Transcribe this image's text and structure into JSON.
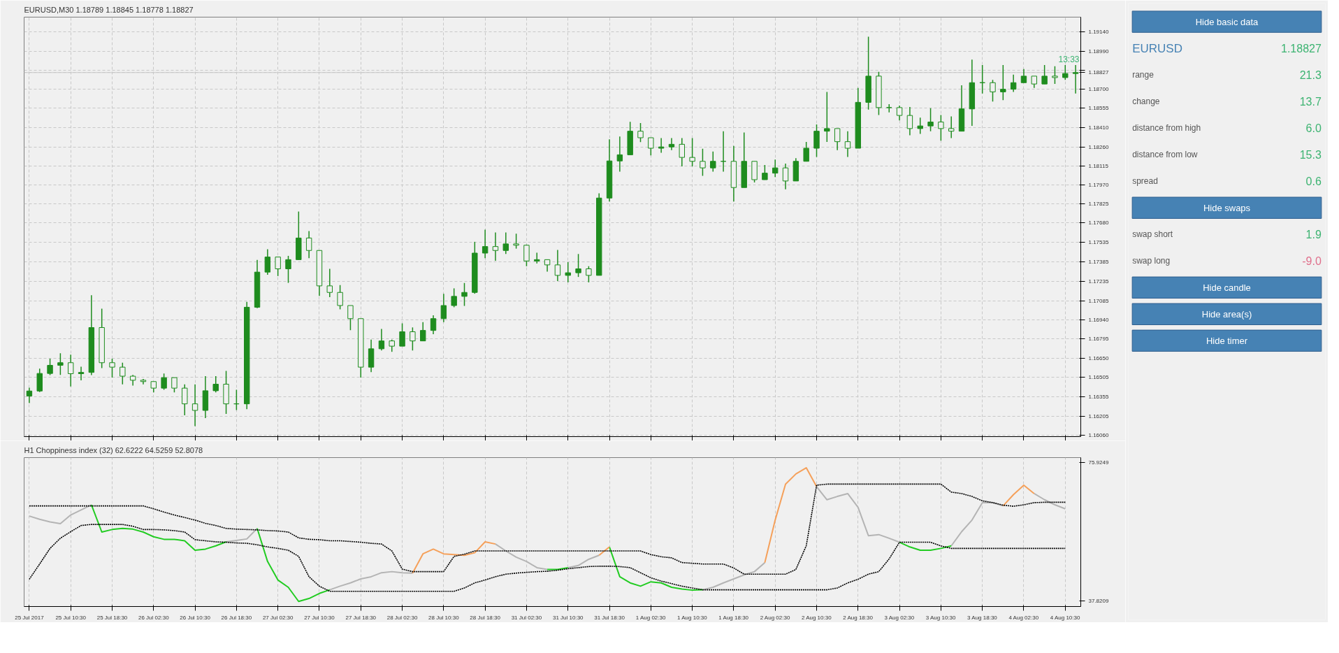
{
  "chart_data": [
    {
      "type": "candlestick",
      "title": "EURUSD,M30  1.18789 1.18845 1.18778 1.18827",
      "color": "#1e8c1e",
      "categories": [
        null,
        null,
        null,
        null,
        null,
        null,
        null,
        null,
        null,
        null,
        null,
        null,
        null,
        null,
        null,
        null,
        null,
        null,
        null,
        null,
        null,
        null,
        null,
        null,
        null,
        null,
        null,
        null,
        null,
        null,
        null,
        null,
        null,
        null,
        null,
        null,
        null,
        null,
        null,
        null,
        null,
        null,
        null,
        null,
        null,
        null,
        null,
        null,
        null,
        null,
        null,
        null,
        null,
        null,
        null,
        null,
        null,
        null,
        null,
        null,
        null,
        null,
        null,
        null,
        null,
        null,
        null,
        null,
        null,
        null,
        null,
        null,
        null,
        null,
        null,
        null,
        null,
        null,
        null,
        null,
        null,
        null,
        null,
        null,
        null,
        null,
        null,
        null,
        null,
        null,
        null,
        null,
        null,
        null,
        null,
        null,
        null,
        null,
        null,
        null,
        null,
        null
      ],
      "ohlc": [
        [
          1.1636,
          1.16423,
          1.16306,
          1.16398
        ],
        [
          1.16398,
          1.16569,
          1.1639,
          1.16532
        ],
        [
          1.16532,
          1.16645,
          1.1652,
          1.16594
        ],
        [
          1.16594,
          1.16686,
          1.16521,
          1.16614
        ],
        [
          1.16614,
          1.16676,
          1.16433,
          1.1653
        ],
        [
          1.1653,
          1.16583,
          1.1648,
          1.1654
        ],
        [
          1.1654,
          1.17129,
          1.1652,
          1.16882
        ],
        [
          1.16882,
          1.17026,
          1.16573,
          1.16614
        ],
        [
          1.16614,
          1.16645,
          1.16501,
          1.1658
        ],
        [
          1.1658,
          1.16614,
          1.16449,
          1.16511
        ],
        [
          1.16511,
          1.16521,
          1.16439,
          1.1648
        ],
        [
          1.1648,
          1.1649,
          1.16449,
          1.1647
        ],
        [
          1.1647,
          1.1647,
          1.16388,
          1.1642
        ],
        [
          1.1642,
          1.16532,
          1.16408,
          1.165
        ],
        [
          1.165,
          1.16501,
          1.16388,
          1.1642
        ],
        [
          1.1642,
          1.16449,
          1.16213,
          1.163
        ],
        [
          1.163,
          1.16449,
          1.1613,
          1.1625
        ],
        [
          1.1625,
          1.16511,
          1.16192,
          1.164
        ],
        [
          1.164,
          1.16511,
          1.16388,
          1.1645
        ],
        [
          1.1645,
          1.16552,
          1.16223,
          1.163
        ],
        [
          1.163,
          1.16408,
          1.16253,
          1.163
        ],
        [
          1.163,
          1.17078,
          1.1626,
          1.17037
        ],
        [
          1.17037,
          1.17398,
          1.1703,
          1.17305
        ],
        [
          1.17305,
          1.1748,
          1.17285,
          1.1742
        ],
        [
          1.1742,
          1.1742,
          1.17275,
          1.1733
        ],
        [
          1.1733,
          1.17429,
          1.17223,
          1.174
        ],
        [
          1.174,
          1.17767,
          1.174,
          1.17565
        ],
        [
          1.17565,
          1.17618,
          1.17412,
          1.1747
        ],
        [
          1.1747,
          1.1747,
          1.17124,
          1.172
        ],
        [
          1.172,
          1.1733,
          1.17114,
          1.1715
        ],
        [
          1.1715,
          1.17206,
          1.17021,
          1.1705
        ],
        [
          1.1705,
          1.1705,
          1.16862,
          1.1695
        ],
        [
          1.1695,
          1.1695,
          1.16501,
          1.1658
        ],
        [
          1.1658,
          1.1679,
          1.16542,
          1.1672
        ],
        [
          1.1672,
          1.16872,
          1.16707,
          1.1678
        ],
        [
          1.1678,
          1.1679,
          1.16697,
          1.1674
        ],
        [
          1.1674,
          1.16914,
          1.1674,
          1.1685
        ],
        [
          1.1685,
          1.16883,
          1.16707,
          1.1678
        ],
        [
          1.1678,
          1.16924,
          1.1678,
          1.1686
        ],
        [
          1.1686,
          1.16976,
          1.16832,
          1.1695
        ],
        [
          1.1695,
          1.1714,
          1.16924,
          1.1705
        ],
        [
          1.1705,
          1.17181,
          1.17037,
          1.1712
        ],
        [
          1.1712,
          1.17222,
          1.17047,
          1.1715
        ],
        [
          1.1715,
          1.17536,
          1.1714,
          1.1745
        ],
        [
          1.1745,
          1.17629,
          1.17412,
          1.175
        ],
        [
          1.175,
          1.17608,
          1.17392,
          1.1747
        ],
        [
          1.1747,
          1.17608,
          1.17443,
          1.1752
        ],
        [
          1.1752,
          1.17598,
          1.17484,
          1.1751
        ],
        [
          1.1751,
          1.17515,
          1.1735,
          1.1739
        ],
        [
          1.1739,
          1.17453,
          1.17371,
          1.174
        ],
        [
          1.174,
          1.174,
          1.17309,
          1.1736
        ],
        [
          1.1736,
          1.17474,
          1.17237,
          1.1728
        ],
        [
          1.1728,
          1.17381,
          1.17227,
          1.173
        ],
        [
          1.173,
          1.17443,
          1.17268,
          1.1733
        ],
        [
          1.1733,
          1.1735,
          1.17227,
          1.1728
        ],
        [
          1.1728,
          1.17906,
          1.1728,
          1.1787
        ],
        [
          1.1787,
          1.18318,
          1.17844,
          1.18153
        ],
        [
          1.18153,
          1.18339,
          1.18071,
          1.182
        ],
        [
          1.182,
          1.18452,
          1.182,
          1.1838
        ],
        [
          1.1838,
          1.18442,
          1.18297,
          1.1833
        ],
        [
          1.1833,
          1.1833,
          1.18195,
          1.1825
        ],
        [
          1.1825,
          1.18328,
          1.18215,
          1.1826
        ],
        [
          1.1826,
          1.18328,
          1.18236,
          1.1828
        ],
        [
          1.1828,
          1.18328,
          1.18112,
          1.1818
        ],
        [
          1.1818,
          1.18328,
          1.18112,
          1.1815
        ],
        [
          1.1815,
          1.18246,
          1.1804,
          1.181
        ],
        [
          1.181,
          1.18225,
          1.18071,
          1.1815
        ],
        [
          1.1815,
          1.1838,
          1.18071,
          1.1815
        ],
        [
          1.1815,
          1.18267,
          1.17844,
          1.1795
        ],
        [
          1.1795,
          1.1837,
          1.1795,
          1.1815
        ],
        [
          1.1815,
          1.1815,
          1.17989,
          1.1801
        ],
        [
          1.1801,
          1.18122,
          1.18009,
          1.1806
        ],
        [
          1.1806,
          1.18164,
          1.1803,
          1.181
        ],
        [
          1.181,
          1.18133,
          1.17937,
          1.18
        ],
        [
          1.18,
          1.18174,
          1.18,
          1.1815
        ],
        [
          1.1815,
          1.18298,
          1.1815,
          1.1825
        ],
        [
          1.1825,
          1.18431,
          1.18184,
          1.1838
        ],
        [
          1.1838,
          1.18679,
          1.18298,
          1.184
        ],
        [
          1.184,
          1.184,
          1.18236,
          1.183
        ],
        [
          1.183,
          1.1838,
          1.18184,
          1.1825
        ],
        [
          1.1825,
          1.1871,
          1.1825,
          1.186
        ],
        [
          1.186,
          1.19101,
          1.18545,
          1.188
        ],
        [
          1.188,
          1.18833,
          1.18503,
          1.1856
        ],
        [
          1.1856,
          1.18586,
          1.18524,
          1.1856
        ],
        [
          1.1856,
          1.18576,
          1.18462,
          1.185
        ],
        [
          1.185,
          1.18565,
          1.18349,
          1.184
        ],
        [
          1.184,
          1.18483,
          1.18359,
          1.1842
        ],
        [
          1.1842,
          1.18555,
          1.1838,
          1.1845
        ],
        [
          1.1845,
          1.18504,
          1.18308,
          1.184
        ],
        [
          1.184,
          1.18493,
          1.18328,
          1.1838
        ],
        [
          1.1838,
          1.1873,
          1.1838,
          1.1855
        ],
        [
          1.1855,
          1.18926,
          1.18421,
          1.1875
        ],
        [
          1.1875,
          1.18885,
          1.18668,
          1.1875
        ],
        [
          1.1875,
          1.18771,
          1.18606,
          1.1868
        ],
        [
          1.1868,
          1.18885,
          1.18617,
          1.187
        ],
        [
          1.187,
          1.18812,
          1.18679,
          1.1875
        ],
        [
          1.1875,
          1.18854,
          1.1875,
          1.188
        ],
        [
          1.188,
          1.188,
          1.1871,
          1.1874
        ],
        [
          1.1874,
          1.18885,
          1.1874,
          1.188
        ],
        [
          1.188,
          1.18875,
          1.18741,
          1.18789
        ],
        [
          1.18789,
          1.18885,
          1.18771,
          1.1882
        ],
        [
          1.1882,
          1.18885,
          1.18668,
          1.18827
        ]
      ],
      "ylim": [
        1.1605,
        1.1925
      ],
      "yticks": [
        {
          "value": 1.1914,
          "label": "1.19140"
        },
        {
          "value": 1.1899,
          "label": "1.18990"
        },
        {
          "value": 1.18845,
          "label": null
        },
        {
          "value": 1.187,
          "label": "1.18700"
        },
        {
          "value": 1.18555,
          "label": "1.18555"
        },
        {
          "value": 1.1841,
          "label": "1.18410"
        },
        {
          "value": 1.1826,
          "label": "1.18260"
        },
        {
          "value": 1.18115,
          "label": "1.18115"
        },
        {
          "value": 1.1797,
          "label": "1.17970"
        },
        {
          "value": 1.17825,
          "label": "1.17825"
        },
        {
          "value": 1.1768,
          "label": "1.17680"
        },
        {
          "value": 1.17535,
          "label": "1.17535"
        },
        {
          "value": 1.17385,
          "label": "1.17385"
        },
        {
          "value": 1.17235,
          "label": "1.17235"
        },
        {
          "value": 1.17085,
          "label": "1.17085"
        },
        {
          "value": 1.1694,
          "label": "1.16940"
        },
        {
          "value": 1.16795,
          "label": "1.16795"
        },
        {
          "value": 1.1665,
          "label": "1.16650"
        },
        {
          "value": 1.16505,
          "label": "1.16505"
        },
        {
          "value": 1.16355,
          "label": "1.16355"
        },
        {
          "value": 1.16205,
          "label": "1.16205"
        },
        {
          "value": 1.1606,
          "label": "1.16060"
        }
      ],
      "ref_lines": [
        {
          "axis": "y",
          "value": 1.18827,
          "label": "1.18827",
          "color": "#c8c8c8"
        }
      ],
      "annotations": [
        {
          "text": "13:33",
          "y": 1.18827
        }
      ],
      "grid": true
    },
    {
      "type": "line",
      "title": "H1 Choppiness index (32) 62.6222 64.5259 52.8078",
      "categories": [
        "25 Jul 2017",
        null,
        null,
        null,
        "25 Jul 10:30",
        null,
        null,
        null,
        "25 Jul 18:30",
        null,
        null,
        null,
        "26 Jul 02:30",
        null,
        null,
        null,
        "26 Jul 10:30",
        null,
        null,
        null,
        "26 Jul 18:30",
        null,
        null,
        null,
        "27 Jul 02:30",
        null,
        null,
        null,
        "27 Jul 10:30",
        null,
        null,
        null,
        "27 Jul 18:30",
        null,
        null,
        null,
        "28 Jul 02:30",
        null,
        null,
        null,
        "28 Jul 10:30",
        null,
        null,
        null,
        "28 Jul 18:30",
        null,
        null,
        null,
        "31 Jul 02:30",
        null,
        null,
        null,
        "31 Jul 10:30",
        null,
        null,
        null,
        "31 Jul 18:30",
        null,
        null,
        null,
        "1 Aug 02:30",
        null,
        null,
        null,
        "1 Aug 10:30",
        null,
        null,
        null,
        "1 Aug 18:30",
        null,
        null,
        null,
        "2 Aug 02:30",
        null,
        null,
        null,
        "2 Aug 10:30",
        null,
        null,
        null,
        "2 Aug 18:30",
        null,
        null,
        null,
        "3 Aug 02:30",
        null,
        null,
        null,
        "3 Aug 10:30",
        null,
        null,
        null,
        "3 Aug 18:30",
        null,
        null,
        null,
        "4 Aug 02:30",
        null,
        null,
        null,
        "4 Aug 10:30",
        null
      ],
      "series": [
        {
          "color": "#000000",
          "line_style": "dotted",
          "values": [
            64.0,
            64.0,
            64.0,
            64.0,
            64.0,
            64.0,
            64.0,
            64.0,
            64.0,
            64.0,
            64.0,
            64.0,
            63.2,
            62.3,
            61.5,
            60.8,
            60.1,
            59.2,
            58.6,
            57.8,
            57.6,
            57.5,
            57.4,
            57.2,
            57.1,
            56.8,
            55.2,
            54.8,
            54.7,
            54.4,
            54.4,
            54.2,
            54.0,
            53.7,
            53.5,
            51.6,
            46.6,
            45.9,
            45.9,
            45.9,
            45.9,
            50.1,
            50.7,
            51.6,
            51.6,
            51.6,
            51.6,
            51.6,
            51.6,
            51.6,
            51.6,
            51.6,
            51.6,
            51.6,
            51.6,
            51.6,
            51.6,
            51.6,
            51.6,
            51.6,
            50.6,
            50.0,
            49.7,
            48.4,
            48.2,
            48.0,
            48.0,
            48.0,
            46.9,
            45.2,
            45.2,
            45.2,
            45.2,
            45.2,
            46.5,
            53.0,
            69.7,
            70.0,
            70.0,
            70.0,
            70.0,
            70.0,
            70.0,
            70.0,
            70.0,
            70.0,
            70.0,
            70.0,
            70.0,
            67.8,
            67.4,
            66.6,
            65.4,
            64.9,
            64.2,
            63.9,
            64.3,
            64.9,
            65.0,
            65.0,
            65.0,
            null
          ]
        },
        {
          "color": "#000000",
          "line_style": "dotted",
          "values": [
            43.8,
            48.0,
            52.3,
            55.1,
            56.9,
            58.6,
            58.9,
            58.9,
            58.9,
            58.9,
            58.4,
            57.5,
            57.5,
            57.4,
            57.2,
            56.8,
            54.7,
            54.4,
            54.1,
            54.0,
            53.8,
            53.7,
            53.3,
            52.7,
            52.3,
            51.8,
            50.1,
            44.5,
            41.9,
            40.5,
            40.5,
            40.5,
            40.5,
            40.5,
            40.5,
            40.5,
            40.5,
            40.5,
            40.5,
            40.5,
            40.5,
            40.5,
            41.4,
            42.8,
            43.6,
            44.5,
            45.2,
            45.5,
            45.7,
            45.9,
            46.0,
            46.3,
            46.7,
            47.0,
            47.3,
            47.4,
            47.4,
            47.3,
            47.0,
            45.6,
            44.2,
            43.3,
            42.6,
            41.9,
            41.4,
            40.9,
            40.9,
            40.9,
            40.9,
            40.9,
            40.9,
            40.9,
            40.9,
            40.9,
            40.9,
            40.9,
            40.9,
            40.9,
            41.4,
            42.8,
            43.8,
            45.2,
            45.9,
            49.4,
            54.0,
            54.0,
            54.0,
            54.0,
            53.0,
            52.3,
            52.3,
            52.3,
            52.3,
            52.3,
            52.3,
            52.3,
            52.3,
            52.3,
            52.3,
            52.3,
            52.3,
            null
          ]
        },
        {
          "color": "#b4b4b4",
          "values": [
            61.2,
            60.3,
            59.6,
            59.1,
            61.5,
            62.9,
            64.3,
            null,
            null,
            null,
            null,
            null,
            null,
            null,
            null,
            null,
            null,
            null,
            null,
            54.1,
            54.5,
            54.9,
            57.8,
            null,
            null,
            null,
            null,
            null,
            null,
            40.9,
            41.9,
            42.8,
            43.9,
            44.5,
            45.6,
            45.9,
            45.6,
            45.5,
            null,
            null,
            null,
            null,
            null,
            null,
            null,
            53.5,
            51.6,
            49.9,
            48.7,
            47.0,
            46.5,
            null,
            47.0,
            47.6,
            49.3,
            50.4,
            null,
            null,
            null,
            null,
            null,
            null,
            null,
            null,
            null,
            40.9,
            41.6,
            42.8,
            43.9,
            45.0,
            45.9,
            48.4,
            null,
            null,
            null,
            null,
            69.3,
            65.7,
            66.6,
            67.4,
            63.6,
            55.8,
            56.1,
            55.1,
            54.0,
            null,
            null,
            null,
            null,
            53.0,
            56.9,
            60.1,
            64.9,
            64.9,
            64.0,
            null,
            null,
            67.4,
            65.7,
            64.3,
            63.2,
            null
          ]
        },
        {
          "color": "#22cc22",
          "values": [
            null,
            null,
            null,
            null,
            null,
            null,
            64.3,
            56.8,
            57.5,
            57.8,
            57.6,
            56.8,
            55.5,
            54.8,
            54.8,
            54.4,
            51.8,
            52.1,
            53.0,
            54.1,
            null,
            null,
            57.8,
            48.7,
            43.6,
            41.6,
            37.7,
            38.5,
            39.9,
            40.9,
            null,
            null,
            null,
            null,
            null,
            null,
            null,
            null,
            null,
            null,
            null,
            null,
            null,
            null,
            null,
            null,
            null,
            null,
            null,
            null,
            46.5,
            46.5,
            47.0,
            null,
            null,
            null,
            52.7,
            44.5,
            42.8,
            41.9,
            43.1,
            42.8,
            41.6,
            41.1,
            40.8,
            40.9,
            null,
            null,
            null,
            null,
            null,
            null,
            null,
            null,
            null,
            null,
            null,
            null,
            null,
            null,
            null,
            null,
            null,
            null,
            54.0,
            52.7,
            51.8,
            51.8,
            52.3,
            53.0,
            null,
            null,
            null,
            null,
            null,
            null,
            null,
            null,
            null,
            null,
            null,
            null
          ]
        },
        {
          "color": "#f5a05a",
          "values": [
            null,
            null,
            null,
            null,
            null,
            null,
            null,
            null,
            null,
            null,
            null,
            null,
            null,
            null,
            null,
            null,
            null,
            null,
            null,
            null,
            null,
            null,
            null,
            null,
            null,
            null,
            null,
            null,
            null,
            null,
            null,
            null,
            null,
            null,
            null,
            null,
            null,
            45.5,
            50.8,
            52.1,
            50.8,
            50.6,
            50.4,
            51.1,
            54.1,
            53.5,
            null,
            null,
            null,
            null,
            null,
            null,
            null,
            null,
            null,
            50.4,
            52.7,
            null,
            null,
            null,
            null,
            null,
            null,
            null,
            null,
            null,
            null,
            null,
            null,
            null,
            null,
            48.4,
            60.1,
            70.0,
            72.8,
            74.5,
            69.3,
            null,
            null,
            null,
            null,
            null,
            null,
            null,
            null,
            null,
            null,
            null,
            null,
            null,
            null,
            null,
            null,
            null,
            64.0,
            67.1,
            69.7,
            67.4,
            null,
            null,
            null,
            null
          ]
        }
      ],
      "ylim": [
        36.3,
        77.3
      ],
      "yticks": [
        37.8209,
        75.9249
      ],
      "grid": "x"
    },
    {
      "type": "other",
      "categories": [
        "Hide basic data",
        "EURUSD",
        "range",
        "change",
        "distance from high",
        "distance from low",
        "spread",
        "Hide swaps",
        "swap short",
        "swap long",
        "Hide candle",
        "Hide area(s)",
        "Hide timer"
      ],
      "value_labels": [
        null,
        "1.18827",
        "21.3",
        "13.7",
        "6.0",
        "15.3",
        "0.6",
        null,
        "1.9",
        "-9.0",
        null,
        null,
        null
      ]
    }
  ]
}
